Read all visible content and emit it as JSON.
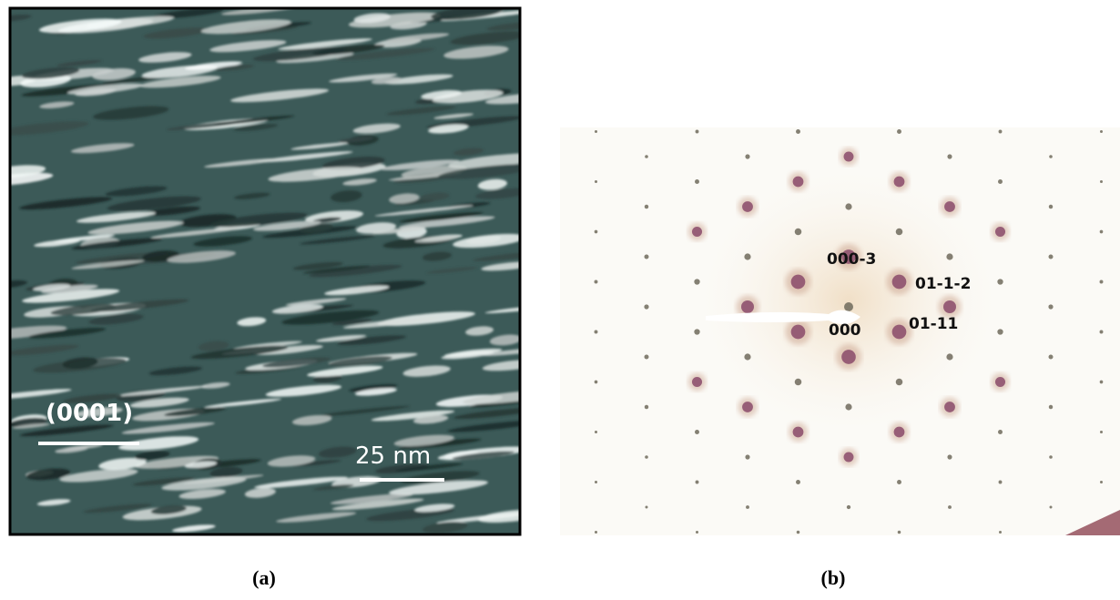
{
  "panels": [
    {
      "label": "(a)",
      "annotations": [
        "(0001)",
        "25 nm"
      ]
    },
    {
      "label": "(b)",
      "annotations": [
        "000-3",
        "01-1-2",
        "000",
        "01-11"
      ]
    }
  ]
}
